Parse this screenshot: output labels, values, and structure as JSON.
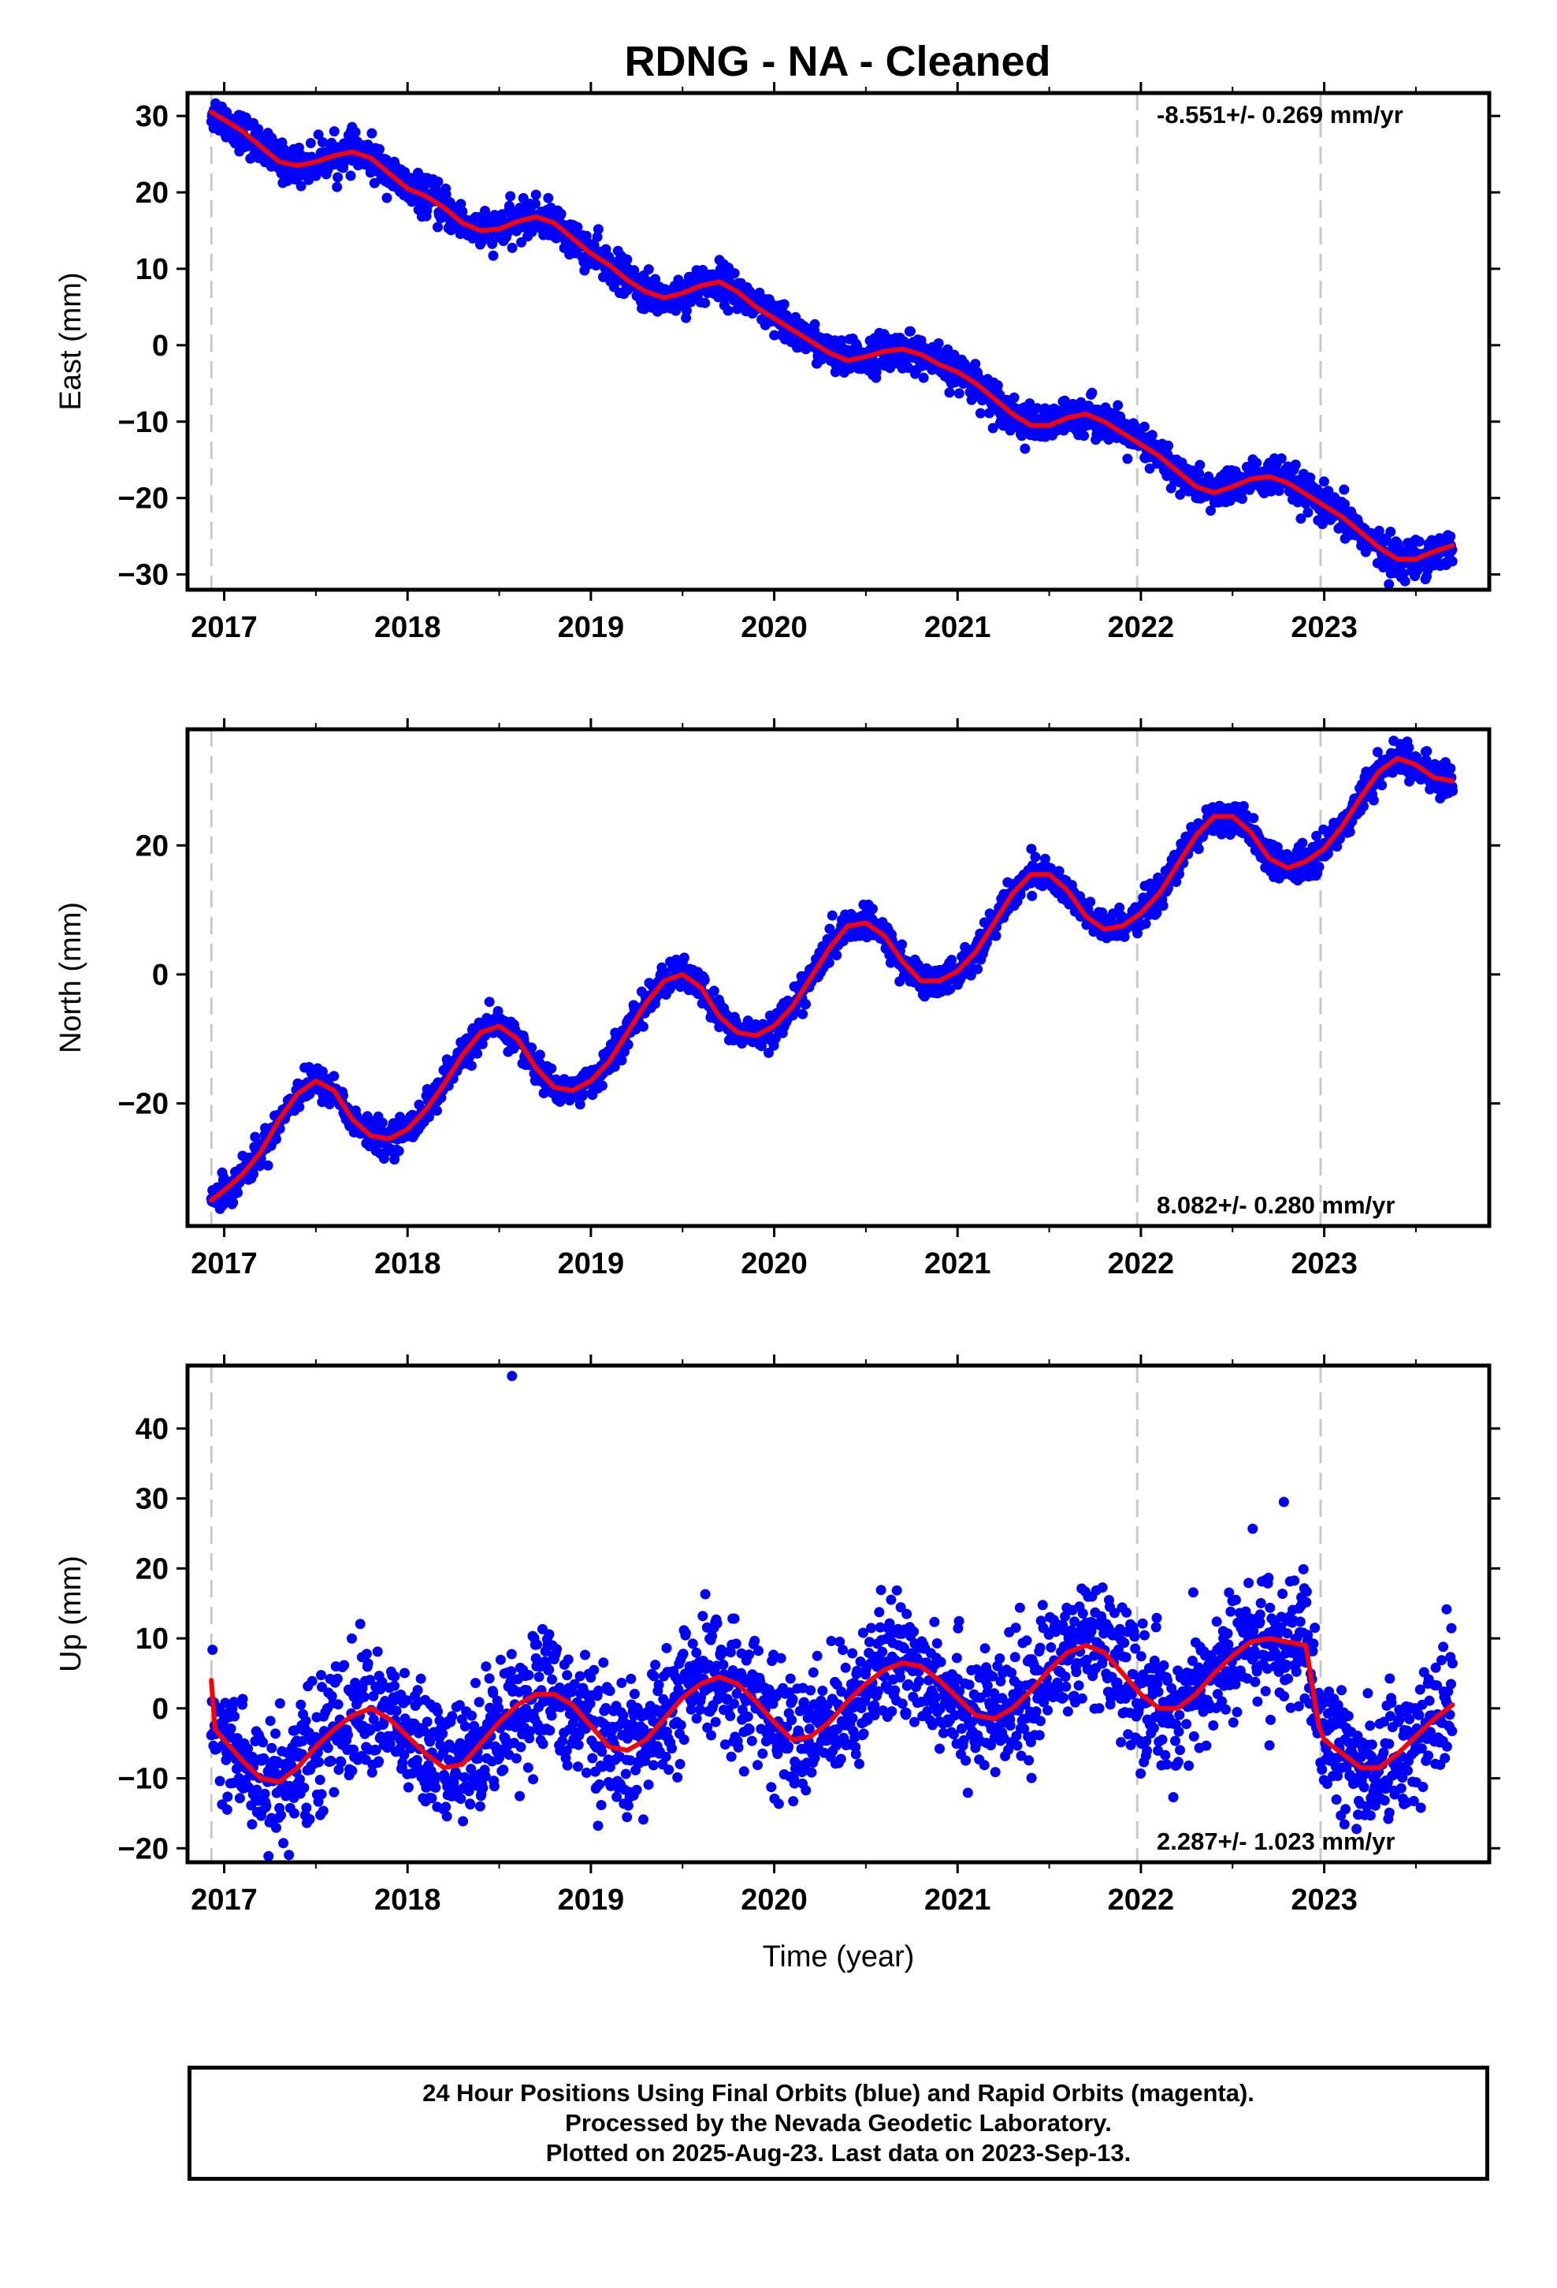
{
  "title": "RDNG  - NA - Cleaned",
  "footer": {
    "line1": "24 Hour Positions Using Final Orbits (blue) and Rapid Orbits (magenta).",
    "line2": "Processed by the Nevada Geodetic Laboratory.",
    "line3": "Plotted on 2025-Aug-23. Last data on 2023-Sep-13."
  },
  "colors": {
    "data": "#0000ff",
    "model": "#ff0000",
    "equipment_change": "#c8c8c8",
    "frame": "#000000"
  },
  "chart_data": [
    {
      "type": "scatter",
      "ylabel": "East (mm)",
      "xlabel": "",
      "xlim": [
        2016.8,
        2023.9
      ],
      "ylim": [
        -32,
        33
      ],
      "xticks": [
        2017,
        2018,
        2019,
        2020,
        2021,
        2022,
        2023
      ],
      "yticks": [
        -30,
        -20,
        -10,
        0,
        10,
        20,
        30
      ],
      "rate": "-8.551+/- 0.269 mm/yr",
      "rate_position": "top-right",
      "equipment_changes": [
        2016.93,
        2021.98,
        2022.98
      ],
      "series": [
        {
          "style": "points",
          "color": "#0000ff",
          "scatter_mm": 1.2,
          "x": [
            2016.93,
            2017.0,
            2017.1,
            2017.2,
            2017.3,
            2017.4,
            2017.5,
            2017.6,
            2017.7,
            2017.8,
            2017.9,
            2018.0,
            2018.1,
            2018.2,
            2018.3,
            2018.4,
            2018.5,
            2018.6,
            2018.7,
            2018.8,
            2018.9,
            2019.0,
            2019.1,
            2019.2,
            2019.3,
            2019.4,
            2019.5,
            2019.6,
            2019.7,
            2019.8,
            2019.9,
            2020.0,
            2020.1,
            2020.2,
            2020.3,
            2020.4,
            2020.5,
            2020.6,
            2020.7,
            2020.8,
            2020.9,
            2021.0,
            2021.1,
            2021.2,
            2021.3,
            2021.4,
            2021.5,
            2021.6,
            2021.7,
            2021.8,
            2021.9,
            2022.0,
            2022.1,
            2022.2,
            2022.3,
            2022.4,
            2022.5,
            2022.6,
            2022.7,
            2022.8,
            2022.9,
            2023.0,
            2023.1,
            2023.2,
            2023.3,
            2023.4,
            2023.5,
            2023.6,
            2023.7
          ],
          "y": [
            30.5,
            29.5,
            28.0,
            26.0,
            24.0,
            23.5,
            24.0,
            24.8,
            25.3,
            24.5,
            22.5,
            20.5,
            19.5,
            18.0,
            16.0,
            15.0,
            15.2,
            16.2,
            16.8,
            16.0,
            14.0,
            12.0,
            10.5,
            8.5,
            7.0,
            6.2,
            6.8,
            7.8,
            8.3,
            7.0,
            5.0,
            3.5,
            2.0,
            0.5,
            -1.0,
            -2.0,
            -1.5,
            -0.8,
            -0.5,
            -1.2,
            -2.5,
            -3.5,
            -5.0,
            -7.0,
            -9.0,
            -10.5,
            -10.5,
            -9.5,
            -9.0,
            -10.0,
            -11.5,
            -13.0,
            -14.5,
            -16.5,
            -18.5,
            -19.3,
            -18.5,
            -17.5,
            -17.2,
            -18.0,
            -19.5,
            -21.0,
            -22.5,
            -24.5,
            -26.5,
            -28.0,
            -28.0,
            -27.0,
            -26.2
          ]
        },
        {
          "style": "line",
          "color": "#ff0000",
          "x": [
            2016.93,
            2017.0,
            2017.1,
            2017.2,
            2017.3,
            2017.4,
            2017.5,
            2017.6,
            2017.7,
            2017.8,
            2017.9,
            2018.0,
            2018.1,
            2018.2,
            2018.3,
            2018.4,
            2018.5,
            2018.6,
            2018.7,
            2018.8,
            2018.9,
            2019.0,
            2019.1,
            2019.2,
            2019.3,
            2019.4,
            2019.5,
            2019.6,
            2019.7,
            2019.8,
            2019.9,
            2020.0,
            2020.1,
            2020.2,
            2020.3,
            2020.4,
            2020.5,
            2020.6,
            2020.7,
            2020.8,
            2020.9,
            2021.0,
            2021.1,
            2021.2,
            2021.3,
            2021.4,
            2021.5,
            2021.6,
            2021.7,
            2021.8,
            2021.9,
            2022.0,
            2022.1,
            2022.2,
            2022.3,
            2022.4,
            2022.5,
            2022.6,
            2022.7,
            2022.8,
            2022.9,
            2023.0,
            2023.1,
            2023.2,
            2023.3,
            2023.4,
            2023.5,
            2023.6,
            2023.7
          ],
          "y": [
            30.5,
            29.5,
            28.0,
            26.0,
            24.0,
            23.5,
            24.0,
            24.8,
            25.3,
            24.5,
            22.5,
            20.5,
            19.5,
            18.0,
            16.0,
            15.0,
            15.2,
            16.2,
            16.8,
            16.0,
            14.0,
            12.0,
            10.5,
            8.5,
            7.0,
            6.2,
            6.8,
            7.8,
            8.3,
            7.0,
            5.0,
            3.5,
            2.0,
            0.5,
            -1.0,
            -2.0,
            -1.5,
            -0.8,
            -0.5,
            -1.2,
            -2.5,
            -3.5,
            -5.0,
            -7.0,
            -9.0,
            -10.5,
            -10.5,
            -9.5,
            -9.0,
            -10.0,
            -11.5,
            -13.0,
            -14.5,
            -16.5,
            -18.5,
            -19.3,
            -18.5,
            -17.5,
            -17.2,
            -18.0,
            -19.5,
            -21.0,
            -22.5,
            -24.5,
            -26.5,
            -28.0,
            -28.0,
            -27.0,
            -26.2
          ]
        }
      ]
    },
    {
      "type": "scatter",
      "ylabel": "North (mm)",
      "xlabel": "",
      "xlim": [
        2016.8,
        2023.9
      ],
      "ylim": [
        -39,
        38
      ],
      "xticks": [
        2017,
        2018,
        2019,
        2020,
        2021,
        2022,
        2023
      ],
      "yticks": [
        -20,
        0,
        20
      ],
      "rate": "8.082+/- 0.280 mm/yr",
      "rate_position": "bottom-right",
      "equipment_changes": [
        2016.93,
        2021.98,
        2022.98
      ],
      "series": [
        {
          "style": "points",
          "color": "#0000ff",
          "scatter_mm": 1.2,
          "x": [
            2016.93,
            2017.0,
            2017.1,
            2017.2,
            2017.3,
            2017.4,
            2017.5,
            2017.6,
            2017.7,
            2017.8,
            2017.9,
            2018.0,
            2018.1,
            2018.2,
            2018.3,
            2018.4,
            2018.5,
            2018.6,
            2018.7,
            2018.8,
            2018.9,
            2019.0,
            2019.1,
            2019.2,
            2019.3,
            2019.4,
            2019.5,
            2019.6,
            2019.7,
            2019.8,
            2019.9,
            2020.0,
            2020.1,
            2020.2,
            2020.3,
            2020.4,
            2020.5,
            2020.6,
            2020.7,
            2020.8,
            2020.9,
            2021.0,
            2021.1,
            2021.2,
            2021.3,
            2021.4,
            2021.5,
            2021.6,
            2021.7,
            2021.8,
            2021.9,
            2022.0,
            2022.1,
            2022.2,
            2022.3,
            2022.4,
            2022.5,
            2022.6,
            2022.7,
            2022.8,
            2022.9,
            2023.0,
            2023.1,
            2023.2,
            2023.3,
            2023.4,
            2023.5,
            2023.6,
            2023.7
          ],
          "y": [
            -35.0,
            -33.5,
            -31.0,
            -27.5,
            -22.5,
            -18.5,
            -16.5,
            -18.0,
            -22.5,
            -25.0,
            -25.5,
            -24.0,
            -21.0,
            -17.0,
            -12.5,
            -9.0,
            -8.0,
            -10.0,
            -14.5,
            -17.5,
            -18.0,
            -16.5,
            -13.5,
            -9.0,
            -4.5,
            -1.0,
            0.0,
            -2.0,
            -6.5,
            -9.0,
            -9.5,
            -8.0,
            -5.0,
            -0.5,
            4.0,
            7.5,
            8.0,
            6.0,
            2.0,
            -1.0,
            -1.0,
            0.5,
            3.5,
            8.0,
            12.5,
            15.5,
            15.5,
            13.0,
            9.0,
            7.0,
            7.5,
            9.5,
            12.5,
            17.0,
            21.5,
            24.5,
            24.5,
            22.0,
            18.0,
            16.5,
            17.5,
            19.5,
            23.0,
            27.5,
            31.5,
            33.5,
            32.5,
            30.5,
            30.0
          ]
        },
        {
          "style": "line",
          "color": "#ff0000",
          "x": [
            2016.93,
            2017.0,
            2017.1,
            2017.2,
            2017.3,
            2017.4,
            2017.5,
            2017.6,
            2017.7,
            2017.8,
            2017.9,
            2018.0,
            2018.1,
            2018.2,
            2018.3,
            2018.4,
            2018.5,
            2018.6,
            2018.7,
            2018.8,
            2018.9,
            2019.0,
            2019.1,
            2019.2,
            2019.3,
            2019.4,
            2019.5,
            2019.6,
            2019.7,
            2019.8,
            2019.9,
            2020.0,
            2020.1,
            2020.2,
            2020.3,
            2020.4,
            2020.5,
            2020.6,
            2020.7,
            2020.8,
            2020.9,
            2021.0,
            2021.1,
            2021.2,
            2021.3,
            2021.4,
            2021.5,
            2021.6,
            2021.7,
            2021.8,
            2021.9,
            2022.0,
            2022.1,
            2022.2,
            2022.3,
            2022.4,
            2022.5,
            2022.6,
            2022.7,
            2022.8,
            2022.9,
            2023.0,
            2023.1,
            2023.2,
            2023.3,
            2023.4,
            2023.5,
            2023.6,
            2023.7
          ],
          "y": [
            -35.0,
            -33.5,
            -31.0,
            -27.5,
            -22.5,
            -18.5,
            -16.5,
            -18.0,
            -22.5,
            -25.0,
            -25.5,
            -24.0,
            -21.0,
            -17.0,
            -12.5,
            -9.0,
            -8.0,
            -10.0,
            -14.5,
            -17.5,
            -18.0,
            -16.5,
            -13.5,
            -9.0,
            -4.5,
            -1.0,
            0.0,
            -2.0,
            -6.5,
            -9.0,
            -9.5,
            -8.0,
            -5.0,
            -0.5,
            4.0,
            7.5,
            8.0,
            6.0,
            2.0,
            -1.0,
            -1.0,
            0.5,
            3.5,
            8.0,
            12.5,
            15.5,
            15.5,
            13.0,
            9.0,
            7.0,
            7.5,
            9.5,
            12.5,
            17.0,
            21.5,
            24.5,
            24.5,
            22.0,
            18.0,
            16.5,
            17.5,
            19.5,
            23.0,
            27.5,
            31.5,
            33.5,
            32.5,
            30.5,
            30.0
          ]
        }
      ]
    },
    {
      "type": "scatter",
      "ylabel": "Up (mm)",
      "xlabel": "Time (year)",
      "xlim": [
        2016.8,
        2023.9
      ],
      "ylim": [
        -22,
        49
      ],
      "xticks": [
        2017,
        2018,
        2019,
        2020,
        2021,
        2022,
        2023
      ],
      "yticks": [
        -20,
        -10,
        0,
        10,
        20,
        30,
        40
      ],
      "rate": "2.287+/- 1.023 mm/yr",
      "rate_position": "bottom-right",
      "equipment_changes": [
        2016.93,
        2021.98,
        2022.98
      ],
      "outliers": [
        {
          "x": 2018.57,
          "y": 47.5
        },
        {
          "x": 2022.78,
          "y": 29.5
        }
      ],
      "series": [
        {
          "style": "points",
          "color": "#0000ff",
          "scatter_mm": 4.5,
          "x": [
            2016.93,
            2016.95,
            2017.0,
            2017.1,
            2017.2,
            2017.3,
            2017.4,
            2017.5,
            2017.6,
            2017.7,
            2017.8,
            2017.9,
            2018.0,
            2018.1,
            2018.2,
            2018.3,
            2018.4,
            2018.5,
            2018.6,
            2018.7,
            2018.8,
            2018.9,
            2019.0,
            2019.1,
            2019.2,
            2019.3,
            2019.4,
            2019.5,
            2019.6,
            2019.7,
            2019.8,
            2019.9,
            2020.0,
            2020.1,
            2020.2,
            2020.3,
            2020.4,
            2020.5,
            2020.6,
            2020.7,
            2020.8,
            2020.9,
            2021.0,
            2021.1,
            2021.2,
            2021.3,
            2021.4,
            2021.5,
            2021.6,
            2021.7,
            2021.8,
            2021.9,
            2022.0,
            2022.1,
            2022.2,
            2022.3,
            2022.4,
            2022.5,
            2022.6,
            2022.7,
            2022.8,
            2022.9,
            2022.97,
            2023.0,
            2023.1,
            2023.2,
            2023.3,
            2023.4,
            2023.5,
            2023.6,
            2023.7
          ],
          "y": [
            4.0,
            -3.0,
            -4.5,
            -7.5,
            -10.0,
            -10.5,
            -8.5,
            -5.5,
            -3.0,
            -1.0,
            0.0,
            -1.5,
            -4.0,
            -6.5,
            -8.5,
            -8.0,
            -5.0,
            -2.0,
            0.5,
            2.0,
            2.0,
            0.5,
            -2.5,
            -5.5,
            -6.0,
            -4.5,
            -1.5,
            1.5,
            3.5,
            4.5,
            3.5,
            1.0,
            -2.0,
            -4.5,
            -4.0,
            -2.0,
            1.0,
            3.5,
            5.5,
            6.5,
            6.0,
            4.0,
            1.5,
            -1.0,
            -1.5,
            0.0,
            2.5,
            5.5,
            8.0,
            9.0,
            8.0,
            5.0,
            2.0,
            0.0,
            0.0,
            2.0,
            5.0,
            7.5,
            9.5,
            10.0,
            9.5,
            9.0,
            -2.5,
            -4.5,
            -6.5,
            -8.5,
            -8.5,
            -6.5,
            -4.0,
            -1.5,
            0.5
          ]
        },
        {
          "style": "line",
          "color": "#ff0000",
          "x": [
            2016.93,
            2016.95,
            2017.0,
            2017.1,
            2017.2,
            2017.3,
            2017.4,
            2017.5,
            2017.6,
            2017.7,
            2017.8,
            2017.9,
            2018.0,
            2018.1,
            2018.2,
            2018.3,
            2018.4,
            2018.5,
            2018.6,
            2018.7,
            2018.8,
            2018.9,
            2019.0,
            2019.1,
            2019.2,
            2019.3,
            2019.4,
            2019.5,
            2019.6,
            2019.7,
            2019.8,
            2019.9,
            2020.0,
            2020.1,
            2020.2,
            2020.3,
            2020.4,
            2020.5,
            2020.6,
            2020.7,
            2020.8,
            2020.9,
            2021.0,
            2021.1,
            2021.2,
            2021.3,
            2021.4,
            2021.5,
            2021.6,
            2021.7,
            2021.8,
            2021.9,
            2022.0,
            2022.1,
            2022.2,
            2022.3,
            2022.4,
            2022.5,
            2022.6,
            2022.7,
            2022.8,
            2022.9,
            2022.97,
            2023.0,
            2023.1,
            2023.2,
            2023.3,
            2023.4,
            2023.5,
            2023.6,
            2023.7
          ],
          "y": [
            4.0,
            -3.0,
            -4.5,
            -7.5,
            -10.0,
            -10.5,
            -8.5,
            -5.5,
            -3.0,
            -1.0,
            0.0,
            -1.5,
            -4.0,
            -6.5,
            -8.5,
            -8.0,
            -5.0,
            -2.0,
            0.5,
            2.0,
            2.0,
            0.5,
            -2.5,
            -5.5,
            -6.0,
            -4.5,
            -1.5,
            1.5,
            3.5,
            4.5,
            3.5,
            1.0,
            -2.0,
            -4.5,
            -4.0,
            -2.0,
            1.0,
            3.5,
            5.5,
            6.5,
            6.0,
            4.0,
            1.5,
            -1.0,
            -1.5,
            0.0,
            2.5,
            5.5,
            8.0,
            9.0,
            8.0,
            5.0,
            2.0,
            0.0,
            0.0,
            2.0,
            5.0,
            7.5,
            9.5,
            10.0,
            9.5,
            9.0,
            -2.5,
            -4.5,
            -6.5,
            -8.5,
            -8.5,
            -6.5,
            -4.0,
            -1.5,
            0.5
          ]
        }
      ]
    }
  ]
}
